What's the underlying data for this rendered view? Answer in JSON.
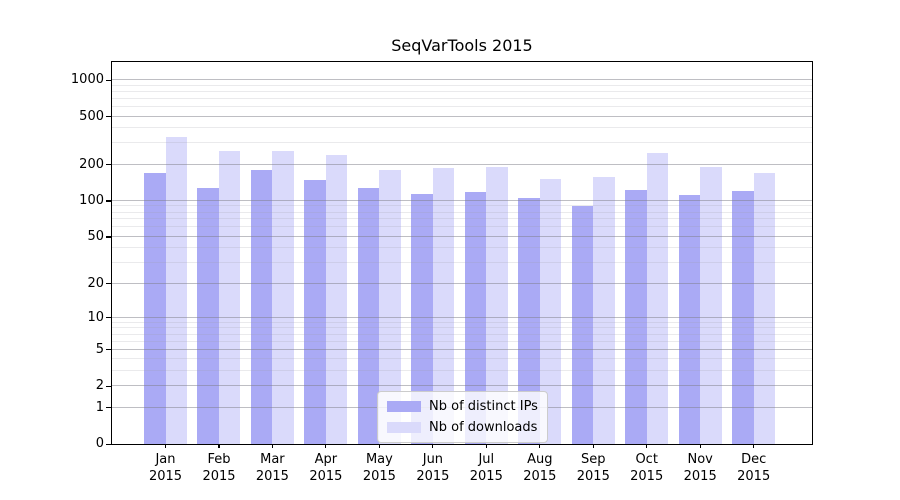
{
  "chart_data": {
    "type": "bar",
    "title": "SeqVarTools 2015",
    "x_year": "2015",
    "categories": [
      "Jan",
      "Feb",
      "Mar",
      "Apr",
      "May",
      "Jun",
      "Jul",
      "Aug",
      "Sep",
      "Oct",
      "Nov",
      "Dec"
    ],
    "series": [
      {
        "name": "Nb of distinct IPs",
        "color": "#aaaaf5",
        "values": [
          171,
          128,
          179,
          148,
          128,
          114,
          119,
          106,
          90,
          124,
          111,
          122
        ]
      },
      {
        "name": "Nb of downloads",
        "color": "#dadafb",
        "values": [
          340,
          258,
          258,
          239,
          180,
          188,
          191,
          151,
          158,
          252,
          191,
          170
        ]
      }
    ],
    "y_scale": "log10(value+1)",
    "y_ticks": [
      0,
      1,
      2,
      5,
      10,
      20,
      50,
      100,
      200,
      500,
      1000
    ],
    "y_minor_gridlines": [
      3,
      4,
      6,
      7,
      8,
      9,
      30,
      40,
      60,
      70,
      80,
      90,
      300,
      400,
      600,
      700,
      800,
      900
    ],
    "ylim": [
      0,
      1300
    ],
    "grid": true,
    "legend_position": "bottom-center",
    "colors": {
      "spine": "#000000",
      "major_grid": "#c3c3c9",
      "minor_grid": "#ececef"
    }
  }
}
